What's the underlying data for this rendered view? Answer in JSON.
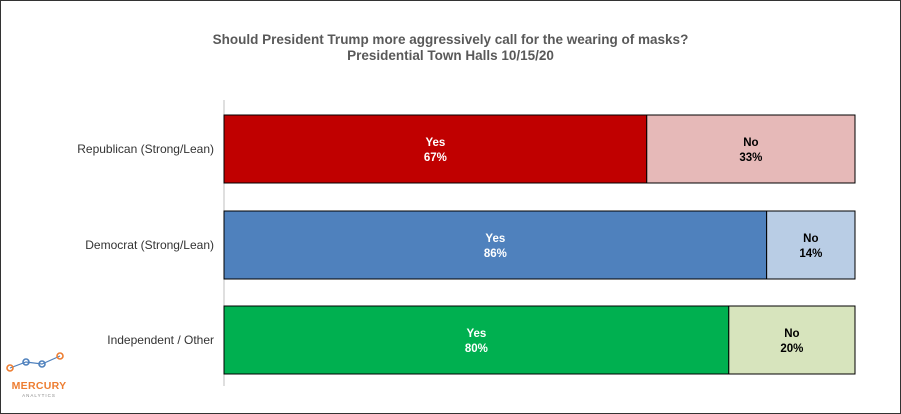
{
  "chart_data": {
    "type": "bar",
    "orientation": "horizontal",
    "stacked": true,
    "percent_stacked": true,
    "title": "Should President Trump more  aggressively call for the wearing of masks?",
    "subtitle": "Presidential Town Halls 10/15/20",
    "categories": [
      "Republican (Strong/Lean)",
      "Democrat (Strong/Lean)",
      "Independent / Other"
    ],
    "segments": [
      {
        "label": "Yes",
        "values": [
          67,
          86,
          80
        ],
        "colors": [
          "#c00000",
          "#4f81bd",
          "#00b050"
        ],
        "text_color": "#ffffff"
      },
      {
        "label": "No",
        "values": [
          33,
          14,
          20
        ],
        "colors": [
          "#e6b9b8",
          "#b9cde5",
          "#d7e4bd"
        ],
        "text_color": "#000000"
      }
    ],
    "value_suffix": "%",
    "xlim": [
      0,
      100
    ],
    "grid": false,
    "legend": "none"
  },
  "logo": {
    "name": "MERCURY",
    "sub": "ANALYTICS",
    "color": "#ed7d31",
    "dot_color": "#4f81bd"
  }
}
